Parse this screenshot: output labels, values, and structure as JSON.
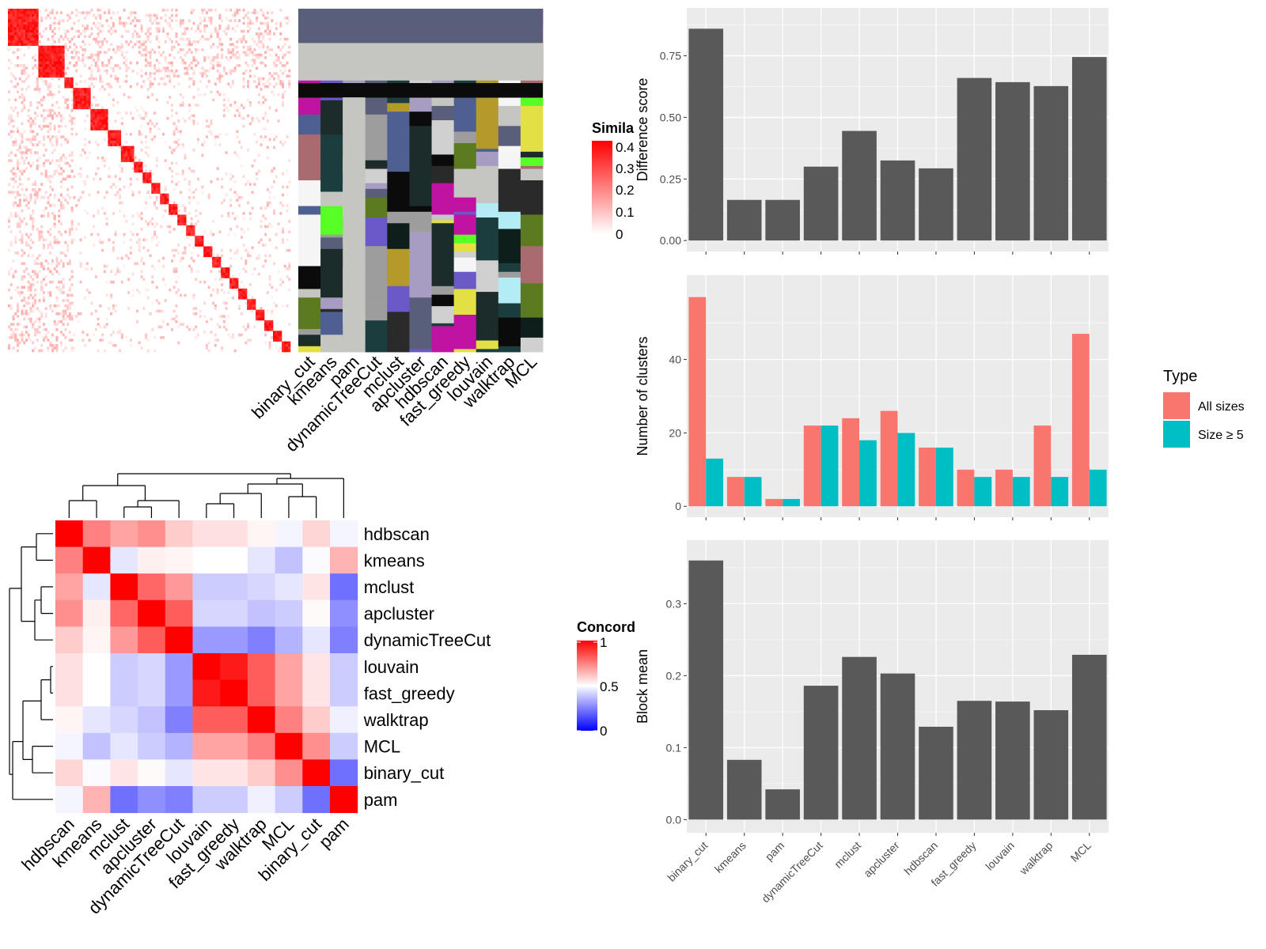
{
  "methods": [
    "binary_cut",
    "kmeans",
    "pam",
    "dynamicTreeCut",
    "mclust",
    "apcluster",
    "hdbscan",
    "fast_greedy",
    "louvain",
    "walktrap",
    "MCL"
  ],
  "concordance_order": [
    "hdbscan",
    "kmeans",
    "mclust",
    "apcluster",
    "dynamicTreeCut",
    "louvain",
    "fast_greedy",
    "walktrap",
    "MCL",
    "binary_cut",
    "pam"
  ],
  "similarity_legend": {
    "title": "Simila",
    "ticks": [
      "0.4",
      "0.3",
      "0.2",
      "0.1",
      "0"
    ]
  },
  "concordance_legend": {
    "title": "Concord",
    "ticks": [
      "1",
      "0.5",
      "0"
    ]
  },
  "type_legend": {
    "title": "Type",
    "items": [
      "All sizes",
      "Size ≥ 5"
    ]
  },
  "colors": {
    "bar": "#595959",
    "all_sizes": "#f8766d",
    "size5": "#00bfc4",
    "panel_bg": "#ebebeb",
    "high": "#ff0000",
    "low": "#0000ff"
  },
  "chart_data": [
    {
      "type": "bar",
      "ylabel": "Difference score",
      "categories": [
        "binary_cut",
        "kmeans",
        "pam",
        "dynamicTreeCut",
        "mclust",
        "apcluster",
        "hdbscan",
        "fast_greedy",
        "louvain",
        "walktrap",
        "MCL"
      ],
      "values": [
        0.86,
        0.165,
        0.165,
        0.3,
        0.445,
        0.325,
        0.293,
        0.66,
        0.643,
        0.627,
        0.745
      ],
      "ylim": [
        0,
        0.9
      ],
      "yticks": [
        "0.00",
        "0.25",
        "0.50",
        "0.75"
      ],
      "show_xlabels": false
    },
    {
      "type": "bar",
      "ylabel": "Number of clusters",
      "categories": [
        "binary_cut",
        "kmeans",
        "pam",
        "dynamicTreeCut",
        "mclust",
        "apcluster",
        "hdbscan",
        "fast_greedy",
        "louvain",
        "walktrap",
        "MCL"
      ],
      "series": [
        {
          "name": "All sizes",
          "values": [
            57,
            8,
            2,
            22,
            24,
            26,
            16,
            10,
            10,
            22,
            47
          ]
        },
        {
          "name": "Size ≥ 5",
          "values": [
            13,
            8,
            2,
            22,
            18,
            20,
            16,
            8,
            8,
            8,
            10
          ]
        }
      ],
      "ylim": [
        0,
        60
      ],
      "yticks": [
        "0",
        "20",
        "40"
      ],
      "show_xlabels": false
    },
    {
      "type": "bar",
      "ylabel": "Block mean",
      "categories": [
        "binary_cut",
        "kmeans",
        "pam",
        "dynamicTreeCut",
        "mclust",
        "apcluster",
        "hdbscan",
        "fast_greedy",
        "louvain",
        "walktrap",
        "MCL"
      ],
      "values": [
        0.36,
        0.083,
        0.042,
        0.186,
        0.226,
        0.203,
        0.129,
        0.165,
        0.164,
        0.152,
        0.229
      ],
      "ylim": [
        0,
        0.37
      ],
      "yticks": [
        "0.0",
        "0.1",
        "0.2",
        "0.3"
      ],
      "show_xlabels": true
    },
    {
      "type": "heatmap",
      "rows": [
        "hdbscan",
        "kmeans",
        "mclust",
        "apcluster",
        "dynamicTreeCut",
        "louvain",
        "fast_greedy",
        "walktrap",
        "MCL",
        "binary_cut",
        "pam"
      ],
      "columns": [
        "hdbscan",
        "kmeans",
        "mclust",
        "apcluster",
        "dynamicTreeCut",
        "louvain",
        "fast_greedy",
        "walktrap",
        "MCL",
        "binary_cut",
        "pam"
      ],
      "values": [
        [
          1.0,
          0.75,
          0.68,
          0.72,
          0.6,
          0.56,
          0.56,
          0.52,
          0.48,
          0.58,
          0.48
        ],
        [
          0.75,
          1.0,
          0.45,
          0.53,
          0.52,
          0.5,
          0.5,
          0.45,
          0.38,
          0.49,
          0.65
        ],
        [
          0.68,
          0.45,
          1.0,
          0.8,
          0.7,
          0.4,
          0.4,
          0.42,
          0.45,
          0.55,
          0.22
        ],
        [
          0.72,
          0.53,
          0.8,
          1.0,
          0.82,
          0.42,
          0.42,
          0.38,
          0.4,
          0.51,
          0.28
        ],
        [
          0.6,
          0.52,
          0.7,
          0.82,
          1.0,
          0.3,
          0.3,
          0.25,
          0.35,
          0.45,
          0.25
        ],
        [
          0.56,
          0.5,
          0.4,
          0.42,
          0.3,
          1.0,
          0.95,
          0.82,
          0.68,
          0.55,
          0.4
        ],
        [
          0.56,
          0.5,
          0.4,
          0.42,
          0.3,
          0.95,
          1.0,
          0.82,
          0.68,
          0.55,
          0.4
        ],
        [
          0.52,
          0.45,
          0.42,
          0.38,
          0.25,
          0.82,
          0.82,
          1.0,
          0.75,
          0.6,
          0.47
        ],
        [
          0.48,
          0.38,
          0.45,
          0.4,
          0.35,
          0.68,
          0.68,
          0.75,
          1.0,
          0.72,
          0.4
        ],
        [
          0.58,
          0.49,
          0.55,
          0.51,
          0.45,
          0.55,
          0.55,
          0.6,
          0.72,
          1.0,
          0.22
        ],
        [
          0.48,
          0.65,
          0.22,
          0.28,
          0.25,
          0.4,
          0.4,
          0.47,
          0.4,
          0.22,
          1.0
        ]
      ],
      "scale": [
        0,
        1
      ]
    }
  ]
}
